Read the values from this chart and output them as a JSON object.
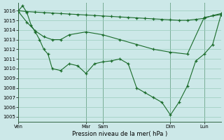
{
  "title": "Pression niveau de la mer( hPa )",
  "background_color": "#cce8e8",
  "grid_color": "#99ccbb",
  "line_color": "#1a6b2a",
  "ylim": [
    1004.5,
    1016.8
  ],
  "xlim": [
    0,
    24
  ],
  "yticks": [
    1005,
    1006,
    1007,
    1008,
    1009,
    1010,
    1011,
    1012,
    1013,
    1014,
    1015,
    1016
  ],
  "xtick_positions": [
    0,
    8,
    10,
    18,
    22
  ],
  "xtick_labels": [
    "Ven",
    "Mar",
    "Sam",
    "Dim",
    "Lun"
  ],
  "series1_x": [
    0,
    1,
    2,
    3,
    4,
    5,
    6,
    7,
    8,
    9,
    10,
    11,
    12,
    13,
    14,
    15,
    16,
    17,
    18,
    19,
    20,
    21,
    22,
    23,
    24
  ],
  "series1_y": [
    1016.0,
    1015.9,
    1015.85,
    1015.8,
    1015.75,
    1015.7,
    1015.65,
    1015.6,
    1015.55,
    1015.5,
    1015.45,
    1015.4,
    1015.35,
    1015.3,
    1015.25,
    1015.2,
    1015.15,
    1015.1,
    1015.05,
    1015.0,
    1015.0,
    1015.1,
    1015.2,
    1015.5,
    1015.7
  ],
  "series2_x": [
    0,
    1,
    2,
    3,
    4,
    5,
    6,
    8,
    10,
    12,
    14,
    16,
    18,
    20,
    22,
    24
  ],
  "series2_y": [
    1015.9,
    1014.8,
    1013.9,
    1013.3,
    1013.0,
    1013.0,
    1013.5,
    1013.8,
    1013.5,
    1013.0,
    1012.5,
    1012.0,
    1011.7,
    1011.5,
    1015.3,
    1015.6
  ],
  "series3_x": [
    0,
    0.5,
    1,
    1.5,
    2,
    2.5,
    3,
    3.5,
    4,
    5,
    6,
    7,
    8,
    9,
    10,
    11,
    12,
    13,
    14,
    15,
    16,
    17,
    18,
    19,
    20,
    21,
    22,
    23,
    24
  ],
  "series3_y": [
    1016.0,
    1016.5,
    1015.8,
    1014.5,
    1013.8,
    1013.0,
    1012.0,
    1011.5,
    1010.0,
    1009.8,
    1010.5,
    1010.3,
    1009.5,
    1010.5,
    1010.7,
    1010.8,
    1011.0,
    1010.5,
    1008.0,
    1007.5,
    1007.0,
    1006.5,
    1005.2,
    1006.5,
    1008.2,
    1010.8,
    1011.5,
    1012.5,
    1015.6
  ]
}
